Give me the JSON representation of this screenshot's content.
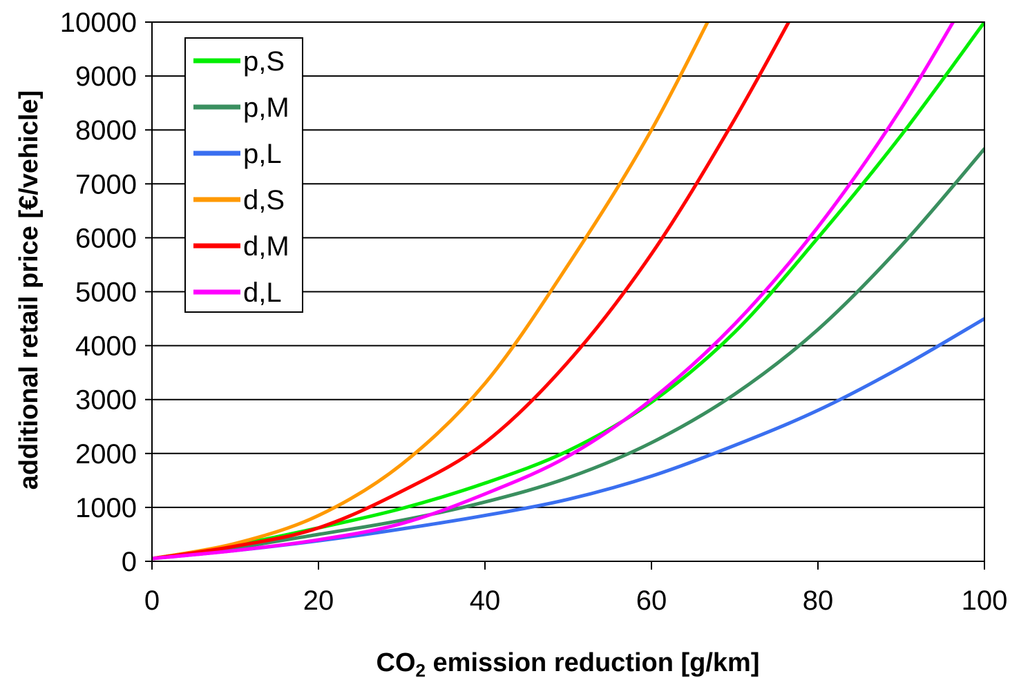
{
  "chart_data": {
    "type": "line",
    "title": "",
    "xlabel": "CO2 emission reduction [g/km]",
    "xlabel_parts": {
      "before": "CO",
      "subscript": "2",
      "after": " emission reduction [g/km]"
    },
    "ylabel": "additional retail price [€/vehicle]",
    "xlim": [
      0,
      100
    ],
    "ylim": [
      0,
      10000
    ],
    "x_ticks": [
      0,
      20,
      40,
      60,
      80,
      100
    ],
    "y_ticks": [
      0,
      1000,
      2000,
      3000,
      4000,
      5000,
      6000,
      7000,
      8000,
      9000,
      10000
    ],
    "grid": "horizontal",
    "legend_position": "top-left",
    "x": [
      0,
      10,
      20,
      30,
      40,
      50,
      60,
      70,
      80,
      90,
      100
    ],
    "series": [
      {
        "name": "p,S",
        "color": "#00ee00",
        "values": [
          50,
          300,
          620,
          980,
          1450,
          2050,
          2950,
          4250,
          6000,
          7900,
          10000
        ]
      },
      {
        "name": "p,M",
        "color": "#3a8f5f",
        "values": [
          50,
          250,
          500,
          760,
          1100,
          1550,
          2200,
          3100,
          4300,
          5850,
          7650
        ]
      },
      {
        "name": "p,L",
        "color": "#3a6ff0",
        "values": [
          50,
          200,
          380,
          600,
          850,
          1150,
          1580,
          2150,
          2800,
          3600,
          4500
        ]
      },
      {
        "name": "d,S",
        "color": "#ff9900",
        "values": [
          50,
          330,
          850,
          1800,
          3300,
          5500,
          8000,
          11000,
          null,
          null,
          null
        ]
      },
      {
        "name": "d,M",
        "color": "#ff0000",
        "values": [
          50,
          280,
          620,
          1300,
          2200,
          3700,
          5700,
          8200,
          11000,
          null,
          null
        ]
      },
      {
        "name": "d,L",
        "color": "#ff00ff",
        "values": [
          50,
          200,
          400,
          700,
          1250,
          1950,
          3000,
          4400,
          6200,
          8400,
          11000
        ]
      }
    ]
  }
}
